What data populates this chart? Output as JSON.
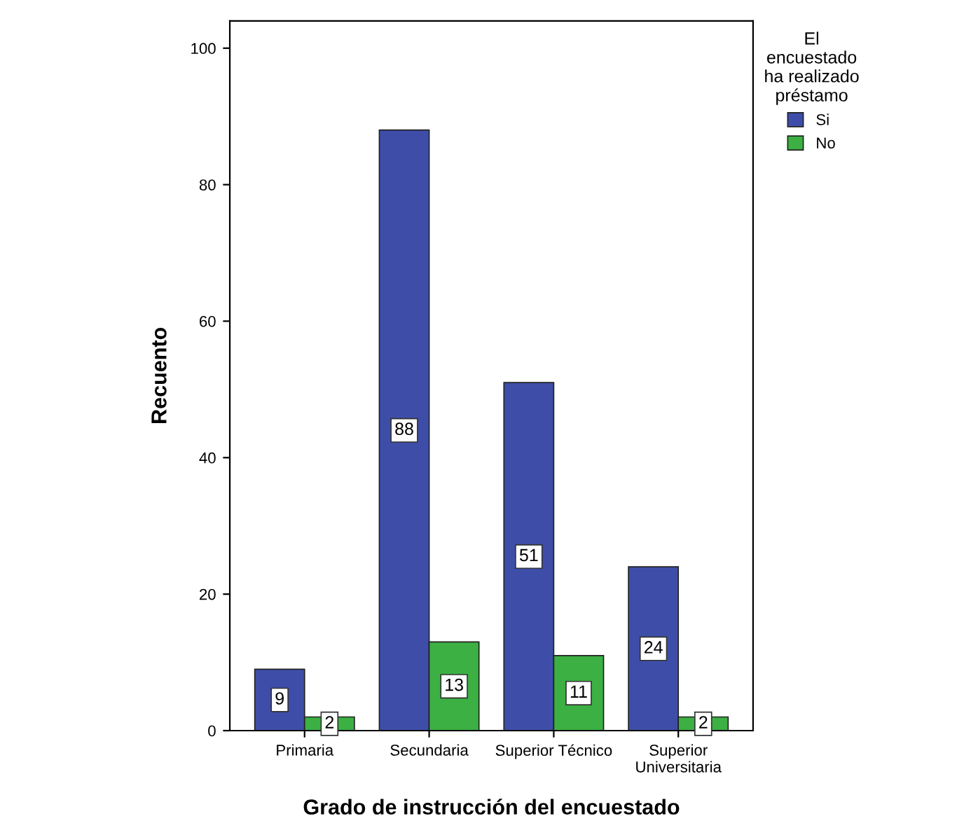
{
  "chart_data": {
    "type": "bar",
    "xlabel": "Grado de instrucción del encuestado",
    "ylabel": "Recuento",
    "legend_title": "El\nencuestado\nha realizado\npréstamo",
    "categories": [
      "Primaria",
      "Secundaria",
      "Superior Técnico",
      "Superior\nUniversitaria"
    ],
    "series": [
      {
        "name": "Si",
        "color": "#3e4ea8",
        "values": [
          9,
          88,
          51,
          24
        ]
      },
      {
        "name": "No",
        "color": "#3cb043",
        "values": [
          2,
          13,
          11,
          2
        ]
      }
    ],
    "ylim": [
      0,
      104
    ],
    "yticks": [
      0,
      20,
      40,
      60,
      80,
      100
    ],
    "data_labels": true,
    "legend": "right",
    "grid": false
  }
}
